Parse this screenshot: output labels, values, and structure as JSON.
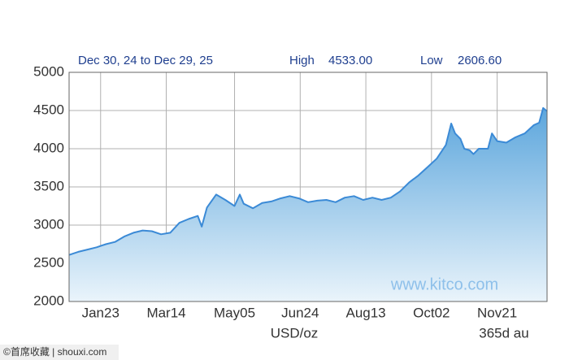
{
  "chart_data": {
    "type": "area",
    "range_label": "Dec 30, 24 to Dec 29, 25",
    "high_label": "High",
    "high": "4533.00",
    "low_label": "Low",
    "low": "2606.60",
    "x_label": "USD/oz",
    "period_label": "365d au",
    "watermark": "www.kitco.com",
    "credit": "©首席收藏 | shouxi.com",
    "x": [
      0,
      7,
      14,
      21,
      28,
      35,
      42,
      49,
      56,
      63,
      70,
      77,
      84,
      91,
      98,
      101,
      105,
      112,
      119,
      126,
      130,
      133,
      140,
      147,
      154,
      161,
      168,
      175,
      182,
      189,
      196,
      203,
      210,
      217,
      224,
      231,
      238,
      245,
      252,
      259,
      266,
      273,
      280,
      287,
      291,
      294,
      298,
      301,
      305,
      308,
      312,
      319,
      322,
      326,
      333,
      340,
      347,
      354,
      358,
      361,
      364
    ],
    "series": [
      {
        "color": "#3b8ad6",
        "values": [
          2610,
          2650,
          2680,
          2710,
          2750,
          2780,
          2850,
          2900,
          2930,
          2920,
          2880,
          2900,
          3030,
          3080,
          3120,
          2980,
          3230,
          3400,
          3330,
          3250,
          3400,
          3280,
          3220,
          3290,
          3310,
          3350,
          3380,
          3350,
          3300,
          3320,
          3330,
          3300,
          3360,
          3380,
          3330,
          3360,
          3330,
          3360,
          3440,
          3560,
          3650,
          3760,
          3870,
          4050,
          4330,
          4200,
          4130,
          4000,
          3980,
          3930,
          4000,
          4000,
          4200,
          4100,
          4080,
          4150,
          4200,
          4310,
          4340,
          4533,
          4490
        ]
      }
    ],
    "xlim": [
      0,
      364
    ],
    "xticks": [
      {
        "value": 24,
        "label": "Jan23"
      },
      {
        "value": 74,
        "label": "Mar14"
      },
      {
        "value": 126,
        "label": "May05"
      },
      {
        "value": 176,
        "label": "Jun24"
      },
      {
        "value": 226,
        "label": "Aug13"
      },
      {
        "value": 276,
        "label": "Oct02"
      },
      {
        "value": 326,
        "label": "Nov21"
      }
    ],
    "ylim": [
      2000,
      5000
    ],
    "yticks": [
      2000,
      2500,
      3000,
      3500,
      4000,
      4500,
      5000
    ],
    "grid": true
  }
}
